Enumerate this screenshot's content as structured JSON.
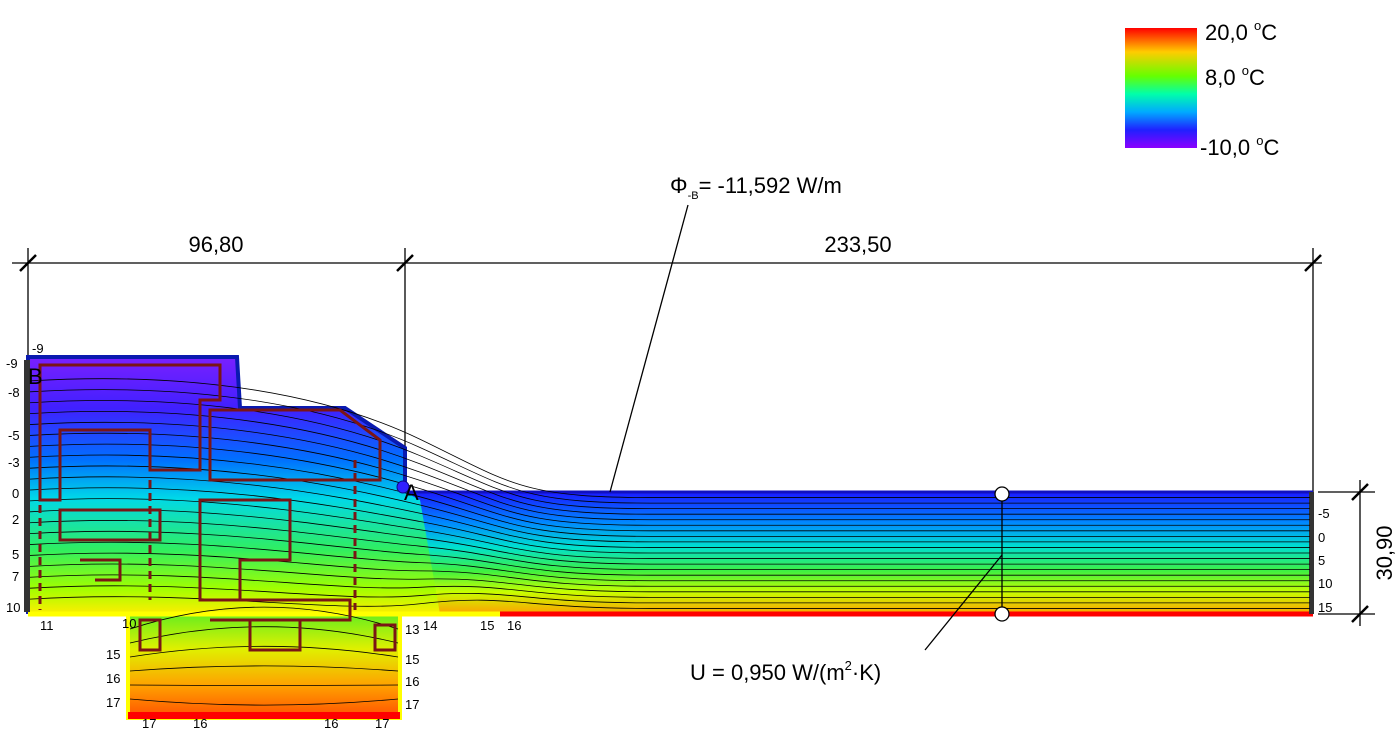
{
  "legend": {
    "labels": [
      "20,0",
      "8,0",
      "-10,0"
    ],
    "degree": "o",
    "unit": "C"
  },
  "flux": {
    "symbol": "Φ",
    "subscript": "-B",
    "text": "= -11,592 W/m"
  },
  "u_value": {
    "text": "U = 0,950 W/(m",
    "exponent": "2",
    "suffix": "·K)"
  },
  "dimensions": [
    "96,80",
    "233,50",
    "30,90"
  ],
  "points": [
    "A",
    "B"
  ],
  "isotherm_labels": {
    "left": [
      "-9",
      "-9",
      "-8",
      "-5",
      "-3",
      "0",
      "2",
      "5",
      "7",
      "10"
    ],
    "bottom": [
      "11",
      "10",
      "13",
      "14",
      "15",
      "16"
    ],
    "right": [
      "-5",
      "0",
      "5",
      "10",
      "15"
    ],
    "lower_left": [
      "15",
      "16",
      "17"
    ],
    "lower_right": [
      "15",
      "16",
      "17"
    ],
    "lower_bottom": [
      "17",
      "16",
      "16",
      "17"
    ]
  }
}
